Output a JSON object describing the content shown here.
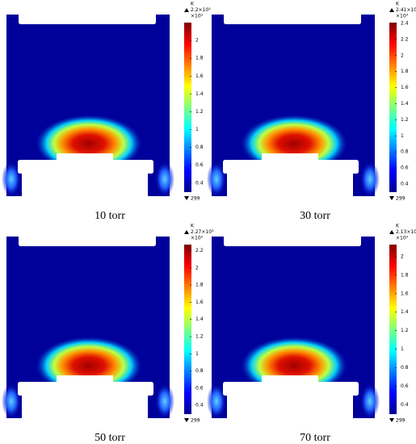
{
  "panels": [
    {
      "caption": "10 torr",
      "colorbar": {
        "unit": "K",
        "max_label": "2.2×10³",
        "multiplier": "×10³",
        "min_label": "299",
        "lim": [
          0.299,
          2.2
        ],
        "ticks": [
          0.4,
          0.6,
          0.8,
          1,
          1.2,
          1.4,
          1.6,
          1.8,
          2
        ]
      }
    },
    {
      "caption": "30 torr",
      "colorbar": {
        "unit": "K",
        "max_label": "2.41×10³",
        "multiplier": "×10³",
        "min_label": "299",
        "lim": [
          0.299,
          2.41
        ],
        "ticks": [
          0.4,
          0.6,
          0.8,
          1,
          1.2,
          1.4,
          1.6,
          1.8,
          2,
          2.2,
          2.4
        ]
      }
    },
    {
      "caption": "50 torr",
      "colorbar": {
        "unit": "K",
        "max_label": "2.27×10³",
        "multiplier": "×10³",
        "min_label": "299",
        "lim": [
          0.299,
          2.27
        ],
        "ticks": [
          0.4,
          0.6,
          0.8,
          1,
          1.2,
          1.4,
          1.6,
          1.8,
          2,
          2.2
        ]
      }
    },
    {
      "caption": "70 torr",
      "colorbar": {
        "unit": "K",
        "max_label": "2.13×10³",
        "multiplier": "×10³",
        "min_label": "299",
        "lim": [
          0.299,
          2.13
        ],
        "ticks": [
          0.4,
          0.6,
          0.8,
          1,
          1.2,
          1.4,
          1.6,
          1.8,
          2
        ]
      }
    }
  ]
}
